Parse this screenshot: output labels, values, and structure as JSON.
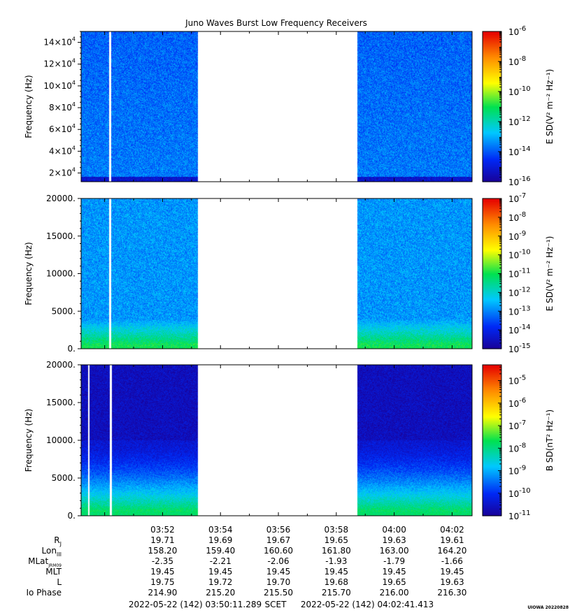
{
  "title": "Juno Waves Burst Low Frequency Receivers",
  "chart_data": [
    {
      "type": "heatmap",
      "panel": "top",
      "ylabel": "Frequency (Hz)",
      "y_tick_labels": [
        {
          "m": "2",
          "v": 20000
        },
        {
          "m": "4",
          "v": 40000
        },
        {
          "m": "6",
          "v": 60000
        },
        {
          "m": "8",
          "v": 80000
        },
        {
          "m": "10",
          "v": 100000
        },
        {
          "m": "12",
          "v": 120000
        },
        {
          "m": "14",
          "v": 140000
        }
      ],
      "y_tick_sci": "×10",
      "y_tick_exp": "4",
      "ylim": [
        12000,
        150000
      ],
      "colorbar_label": "E SD(V² m⁻² Hz⁻¹)",
      "colorbar_ticks": [
        {
          "exp": "-6",
          "v": -6
        },
        {
          "exp": "-8",
          "v": -8
        },
        {
          "exp": "-10",
          "v": -10
        },
        {
          "exp": "-12",
          "v": -12
        },
        {
          "exp": "-14",
          "v": -14
        },
        {
          "exp": "-16",
          "v": -16
        }
      ],
      "colorbar_range": [
        -16,
        -6
      ],
      "colorbar_minor_decades": false,
      "background_level": -13.7,
      "data_gap": [
        "03:54",
        "03:59"
      ]
    },
    {
      "type": "heatmap",
      "panel": "middle",
      "ylabel": "Frequency (Hz)",
      "y_tick_labels": [
        "0.",
        "5000.",
        "10000.",
        "15000.",
        "20000."
      ],
      "y_tick_values": [
        0,
        5000,
        10000,
        15000,
        20000
      ],
      "ylim": [
        0,
        20000
      ],
      "colorbar_label": "E SD(V² m⁻² Hz⁻¹)",
      "colorbar_ticks": [
        {
          "exp": "-7",
          "v": -7
        },
        {
          "exp": "-8",
          "v": -8
        },
        {
          "exp": "-9",
          "v": -9
        },
        {
          "exp": "-10",
          "v": -10
        },
        {
          "exp": "-11",
          "v": -11
        },
        {
          "exp": "-12",
          "v": -12
        },
        {
          "exp": "-13",
          "v": -13
        },
        {
          "exp": "-14",
          "v": -14
        },
        {
          "exp": "-15",
          "v": -15
        }
      ],
      "colorbar_range": [
        -15,
        -7
      ],
      "colorbar_minor_decades": false,
      "background_level": -12.8,
      "data_gap": [
        "03:54",
        "03:59"
      ]
    },
    {
      "type": "heatmap",
      "panel": "bottom",
      "ylabel": "Frequency (Hz)",
      "y_tick_labels": [
        "0.",
        "5000.",
        "10000.",
        "15000.",
        "20000."
      ],
      "y_tick_values": [
        0,
        5000,
        10000,
        15000,
        20000
      ],
      "ylim": [
        0,
        20000
      ],
      "colorbar_label": "B SD(nT² Hz⁻¹)",
      "colorbar_ticks": [
        {
          "exp": "-5",
          "v": -5
        },
        {
          "exp": "-6",
          "v": -6
        },
        {
          "exp": "-7",
          "v": -7
        },
        {
          "exp": "-8",
          "v": -8
        },
        {
          "exp": "-9",
          "v": -9
        },
        {
          "exp": "-10",
          "v": -10
        },
        {
          "exp": "-11",
          "v": -11
        }
      ],
      "colorbar_range": [
        -11,
        -4.3
      ],
      "colorbar_minor_decades": false,
      "background_level": -10.4,
      "data_gap": [
        "03:54",
        "03:59"
      ]
    }
  ],
  "x_axis": {
    "tick_labels": [
      "03:52",
      "03:54",
      "03:56",
      "03:58",
      "04:00",
      "04:02"
    ],
    "tick_values": [
      3.0,
      5.0,
      7.0,
      9.0,
      11.0,
      13.0
    ],
    "x_range_minutes_after_0349": [
      0.1872,
      13.6902
    ]
  },
  "ephemeris": {
    "rows": [
      {
        "label": "R",
        "sub": "J",
        "values": [
          "19.71",
          "19.69",
          "19.67",
          "19.65",
          "19.63",
          "19.61"
        ]
      },
      {
        "label": "Lon",
        "sub": "III",
        "values": [
          "158.20",
          "159.40",
          "160.60",
          "161.80",
          "163.00",
          "164.20"
        ]
      },
      {
        "label": "MLat",
        "sub": "JRM09",
        "values": [
          "-2.35",
          "-2.21",
          "-2.06",
          "-1.93",
          "-1.79",
          "-1.66"
        ]
      },
      {
        "label": "MLT",
        "sub": "",
        "values": [
          "19.45",
          "19.45",
          "19.45",
          "19.45",
          "19.45",
          "19.45"
        ]
      },
      {
        "label": "L",
        "sub": "",
        "values": [
          "19.75",
          "19.72",
          "19.70",
          "19.68",
          "19.65",
          "19.63"
        ]
      },
      {
        "label": "Io Phase",
        "sub": "",
        "values": [
          "214.90",
          "215.20",
          "215.50",
          "215.70",
          "216.00",
          "216.30"
        ]
      }
    ]
  },
  "footer": {
    "start": "2022-05-22 (142) 03:50:11.289",
    "scet": "SCET",
    "end": "2022-05-22 (142) 04:02:41.413"
  },
  "stamp": "UIOWA 20220828"
}
